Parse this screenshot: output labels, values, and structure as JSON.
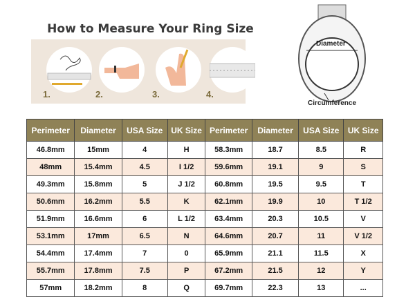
{
  "title": "How to Measure Your Ring Size",
  "steps": [
    "1.",
    "2.",
    "3.",
    "4."
  ],
  "ring_labels": {
    "diameter": "Diameter",
    "circumference": "Circumference"
  },
  "colors": {
    "header_bg": "#8f8257",
    "alt_row": "#fbe9dc",
    "panel": "#efe6dc"
  },
  "table": {
    "headers": [
      "Perimeter",
      "Diameter",
      "USA Size",
      "UK Size",
      "Perimeter",
      "Diameter",
      "USA Size",
      "UK Size"
    ],
    "rows": [
      [
        "46.8mm",
        "15mm",
        "4",
        "H",
        "58.3mm",
        "18.7",
        "8.5",
        "R"
      ],
      [
        "48mm",
        "15.4mm",
        "4.5",
        "I 1/2",
        "59.6mm",
        "19.1",
        "9",
        "S"
      ],
      [
        "49.3mm",
        "15.8mm",
        "5",
        "J 1/2",
        "60.8mm",
        "19.5",
        "9.5",
        "T"
      ],
      [
        "50.6mm",
        "16.2mm",
        "5.5",
        "K",
        "62.1mm",
        "19.9",
        "10",
        "T 1/2"
      ],
      [
        "51.9mm",
        "16.6mm",
        "6",
        "L 1/2",
        "63.4mm",
        "20.3",
        "10.5",
        "V"
      ],
      [
        "53.1mm",
        "17mm",
        "6.5",
        "N",
        "64.6mm",
        "20.7",
        "11",
        "V 1/2"
      ],
      [
        "54.4mm",
        "17.4mm",
        "7",
        "0",
        "65.9mm",
        "21.1",
        "11.5",
        "X"
      ],
      [
        "55.7mm",
        "17.8mm",
        "7.5",
        "P",
        "67.2mm",
        "21.5",
        "12",
        "Y"
      ],
      [
        "57mm",
        "18.2mm",
        "8",
        "Q",
        "69.7mm",
        "22.3",
        "13",
        "..."
      ]
    ]
  }
}
